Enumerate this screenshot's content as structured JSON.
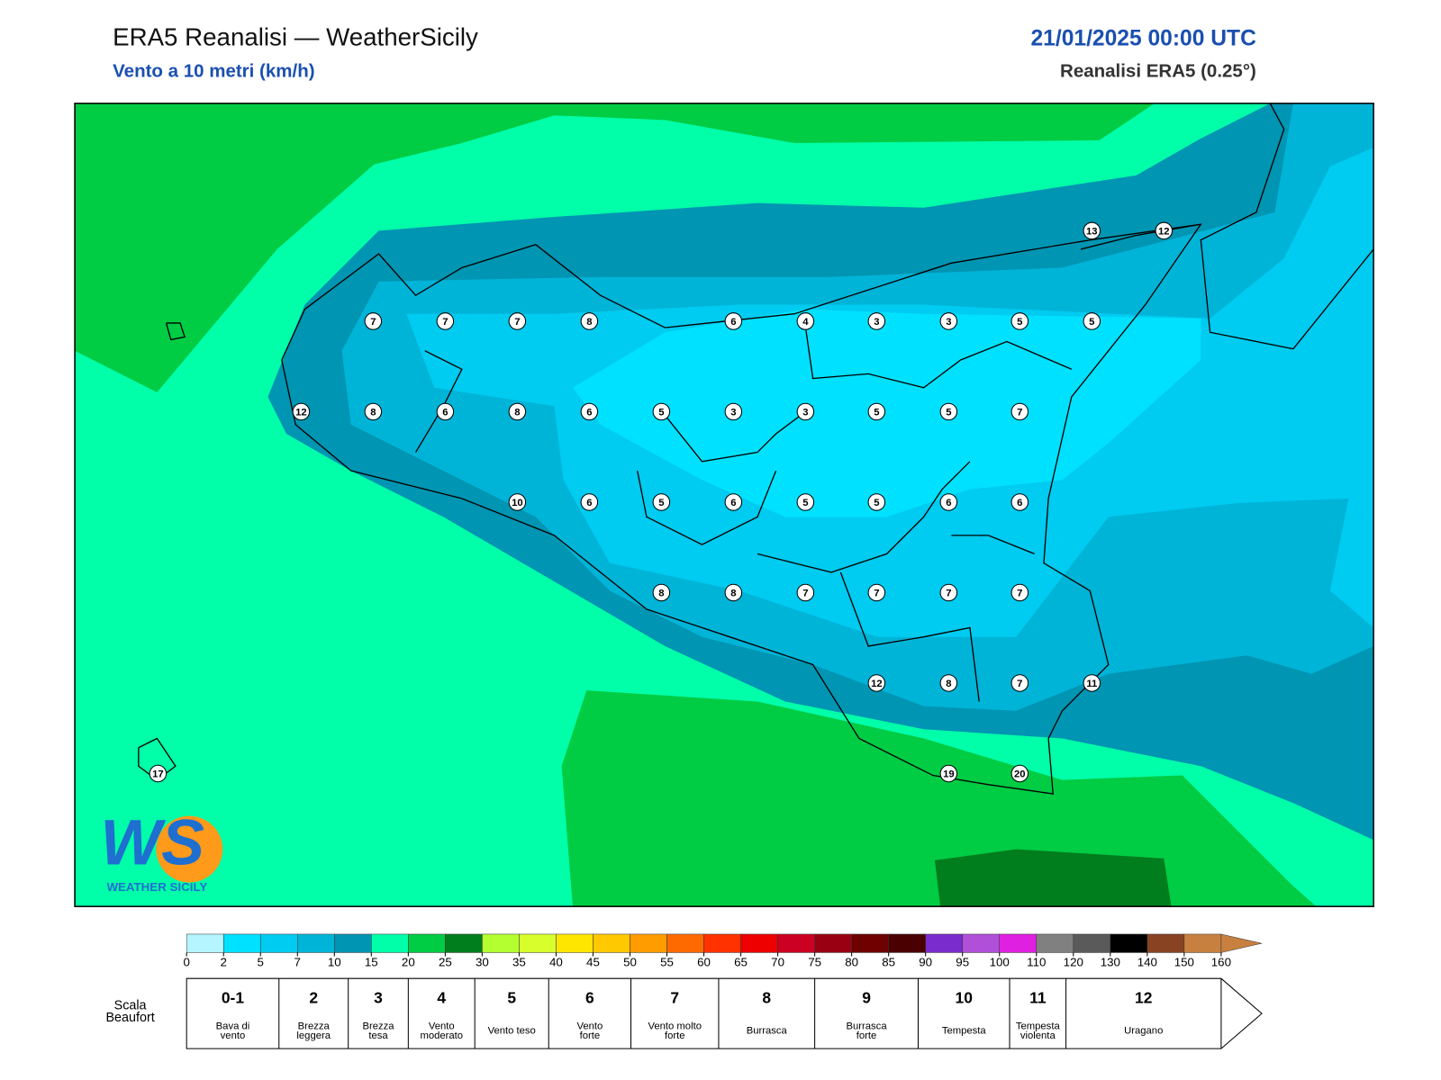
{
  "header": {
    "title": "ERA5 Reanalisi — WeatherSicily",
    "subtitle": "Vento a 10 metri (km/h)",
    "datetime": "21/01/2025 00:00 UTC",
    "source": "Reanalisi ERA5 (0.25°)"
  },
  "stations": [
    7,
    7,
    7,
    8,
    6,
    4,
    3,
    3,
    5,
    5,
    12,
    8,
    6,
    8,
    6,
    5,
    3,
    3,
    5,
    5,
    7,
    10,
    6,
    5,
    6,
    5,
    5,
    6,
    6,
    8,
    8,
    7,
    7,
    7,
    7,
    12,
    8,
    7,
    11,
    19,
    20,
    13,
    12,
    17
  ],
  "colorbar": {
    "ticks": [
      0,
      2,
      5,
      7,
      10,
      15,
      20,
      25,
      30,
      35,
      40,
      45,
      50,
      55,
      60,
      65,
      70,
      75,
      80,
      85,
      90,
      95,
      100,
      110,
      120,
      130,
      140,
      150,
      160
    ],
    "colors": [
      "#b5f5ff",
      "#00e1ff",
      "#00cbf0",
      "#00b4d8",
      "#0095b2",
      "#00ffa8",
      "#00cc44",
      "#007d1c",
      "#b4ff30",
      "#d8ff2c",
      "#ffe600",
      "#ffc800",
      "#ff9c00",
      "#ff6a00",
      "#ff3200",
      "#ee0000",
      "#cc0022",
      "#990011",
      "#6e0000",
      "#4a0000",
      "#7b2ccc",
      "#b050d8",
      "#e020e0",
      "#808080",
      "#5a5a5a",
      "#000000",
      "#884422",
      "#c88040"
    ]
  },
  "beaufort": {
    "title": [
      "Scala",
      "Beaufort"
    ],
    "classes": [
      {
        "force": "0-1",
        "label": [
          "Bava di",
          "vento"
        ]
      },
      {
        "force": "2",
        "label": [
          "Brezza",
          "leggera"
        ]
      },
      {
        "force": "3",
        "label": [
          "Brezza",
          "tesa"
        ]
      },
      {
        "force": "4",
        "label": [
          "Vento",
          "moderato"
        ]
      },
      {
        "force": "5",
        "label": [
          "Vento teso"
        ]
      },
      {
        "force": "6",
        "label": [
          "Vento",
          "forte"
        ]
      },
      {
        "force": "7",
        "label": [
          "Vento molto",
          "forte"
        ]
      },
      {
        "force": "8",
        "label": [
          "Burrasca"
        ]
      },
      {
        "force": "9",
        "label": [
          "Burrasca",
          "forte"
        ]
      },
      {
        "force": "10",
        "label": [
          "Tempesta"
        ]
      },
      {
        "force": "11",
        "label": [
          "Tempesta",
          "violenta"
        ]
      },
      {
        "force": "12",
        "label": [
          "Uragano"
        ]
      }
    ]
  },
  "logo": {
    "mark": "WS",
    "text": "WEATHER SICILY"
  }
}
